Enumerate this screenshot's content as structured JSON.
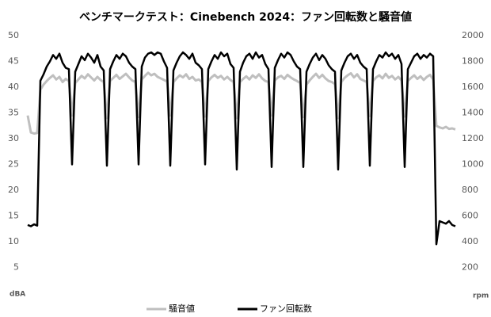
{
  "chart_data": {
    "type": "line",
    "title": "ベンチマークテスト：Cinebench 2024：ファン回転数と騒音値",
    "y_label": "dBA",
    "y2_label": "rpm",
    "ylim": [
      0,
      50
    ],
    "yticks": [
      5,
      10,
      15,
      20,
      25,
      30,
      35,
      40,
      45,
      50
    ],
    "y2lim": [
      0,
      2000
    ],
    "y2ticks": [
      200,
      400,
      600,
      800,
      1000,
      1200,
      1400,
      1600,
      1800,
      2000
    ],
    "grid": false,
    "legend": "bottom",
    "series": [
      {
        "name": "騒音値",
        "color": "#bfbfbf",
        "values": [
          34.5,
          31.2,
          31,
          31.1,
          39.5,
          40.5,
          41.2,
          41.8,
          42.3,
          41.5,
          42,
          41,
          41.6,
          41.2,
          34.5,
          40.8,
          41.5,
          42.2,
          41.7,
          42.5,
          41.9,
          41.3,
          42,
          41.4,
          41,
          34,
          41.2,
          41.8,
          42.4,
          41.6,
          42.1,
          42.6,
          41.9,
          41.3,
          41,
          34.2,
          41.5,
          42.2,
          42.8,
          42.3,
          42.6,
          42,
          41.7,
          41.4,
          41.1,
          34.5,
          41,
          41.7,
          42.3,
          41.9,
          42.5,
          41.6,
          42,
          41.3,
          41.5,
          41,
          34.3,
          41.2,
          41.9,
          42.4,
          41.8,
          42.2,
          41.5,
          42,
          41.4,
          41,
          34,
          41,
          41.6,
          42.1,
          41.5,
          42.3,
          41.8,
          42.5,
          41.7,
          41.2,
          41,
          34.5,
          41.3,
          41.9,
          42.2,
          41.6,
          42.4,
          41.9,
          41.5,
          41.2,
          40.8,
          34.2,
          40.5,
          41.3,
          42,
          42.6,
          41.8,
          42.4,
          41.7,
          41.2,
          41,
          40.6,
          34,
          41,
          41.8,
          42.3,
          42.7,
          41.9,
          42.5,
          41.6,
          41.3,
          41,
          34.4,
          41.2,
          41.9,
          42.3,
          41.7,
          42.6,
          41.8,
          42.2,
          41.5,
          42,
          41.3,
          34.3,
          41.2,
          41.8,
          42.3,
          41.6,
          42.1,
          41.4,
          42,
          42.4,
          41.5,
          32.5,
          32.2,
          32,
          32.3,
          31.9,
          32,
          31.8
        ]
      },
      {
        "name": "ファン回転数",
        "color": "#000000",
        "axis": "y2",
        "values": [
          530,
          520,
          535,
          525,
          1650,
          1700,
          1760,
          1800,
          1850,
          1820,
          1860,
          1790,
          1750,
          1740,
          1000,
          1720,
          1780,
          1840,
          1810,
          1860,
          1830,
          1790,
          1850,
          1760,
          1730,
          990,
          1740,
          1800,
          1850,
          1820,
          1860,
          1840,
          1790,
          1760,
          1740,
          1000,
          1760,
          1830,
          1860,
          1870,
          1850,
          1870,
          1860,
          1800,
          1750,
          990,
          1730,
          1790,
          1840,
          1870,
          1850,
          1820,
          1860,
          1790,
          1770,
          1740,
          1000,
          1740,
          1800,
          1850,
          1820,
          1870,
          1840,
          1860,
          1780,
          1750,
          960,
          1720,
          1790,
          1840,
          1860,
          1820,
          1870,
          1830,
          1850,
          1780,
          1740,
          980,
          1750,
          1810,
          1860,
          1830,
          1870,
          1850,
          1800,
          1760,
          1740,
          980,
          1720,
          1780,
          1830,
          1860,
          1810,
          1850,
          1820,
          1770,
          1740,
          1720,
          960,
          1730,
          1790,
          1840,
          1860,
          1820,
          1850,
          1790,
          1760,
          1740,
          990,
          1740,
          1800,
          1850,
          1830,
          1870,
          1840,
          1860,
          1820,
          1850,
          1780,
          980,
          1740,
          1790,
          1840,
          1860,
          1820,
          1850,
          1830,
          1860,
          1840,
          380,
          560,
          550,
          540,
          560,
          530,
          520
        ]
      }
    ]
  }
}
